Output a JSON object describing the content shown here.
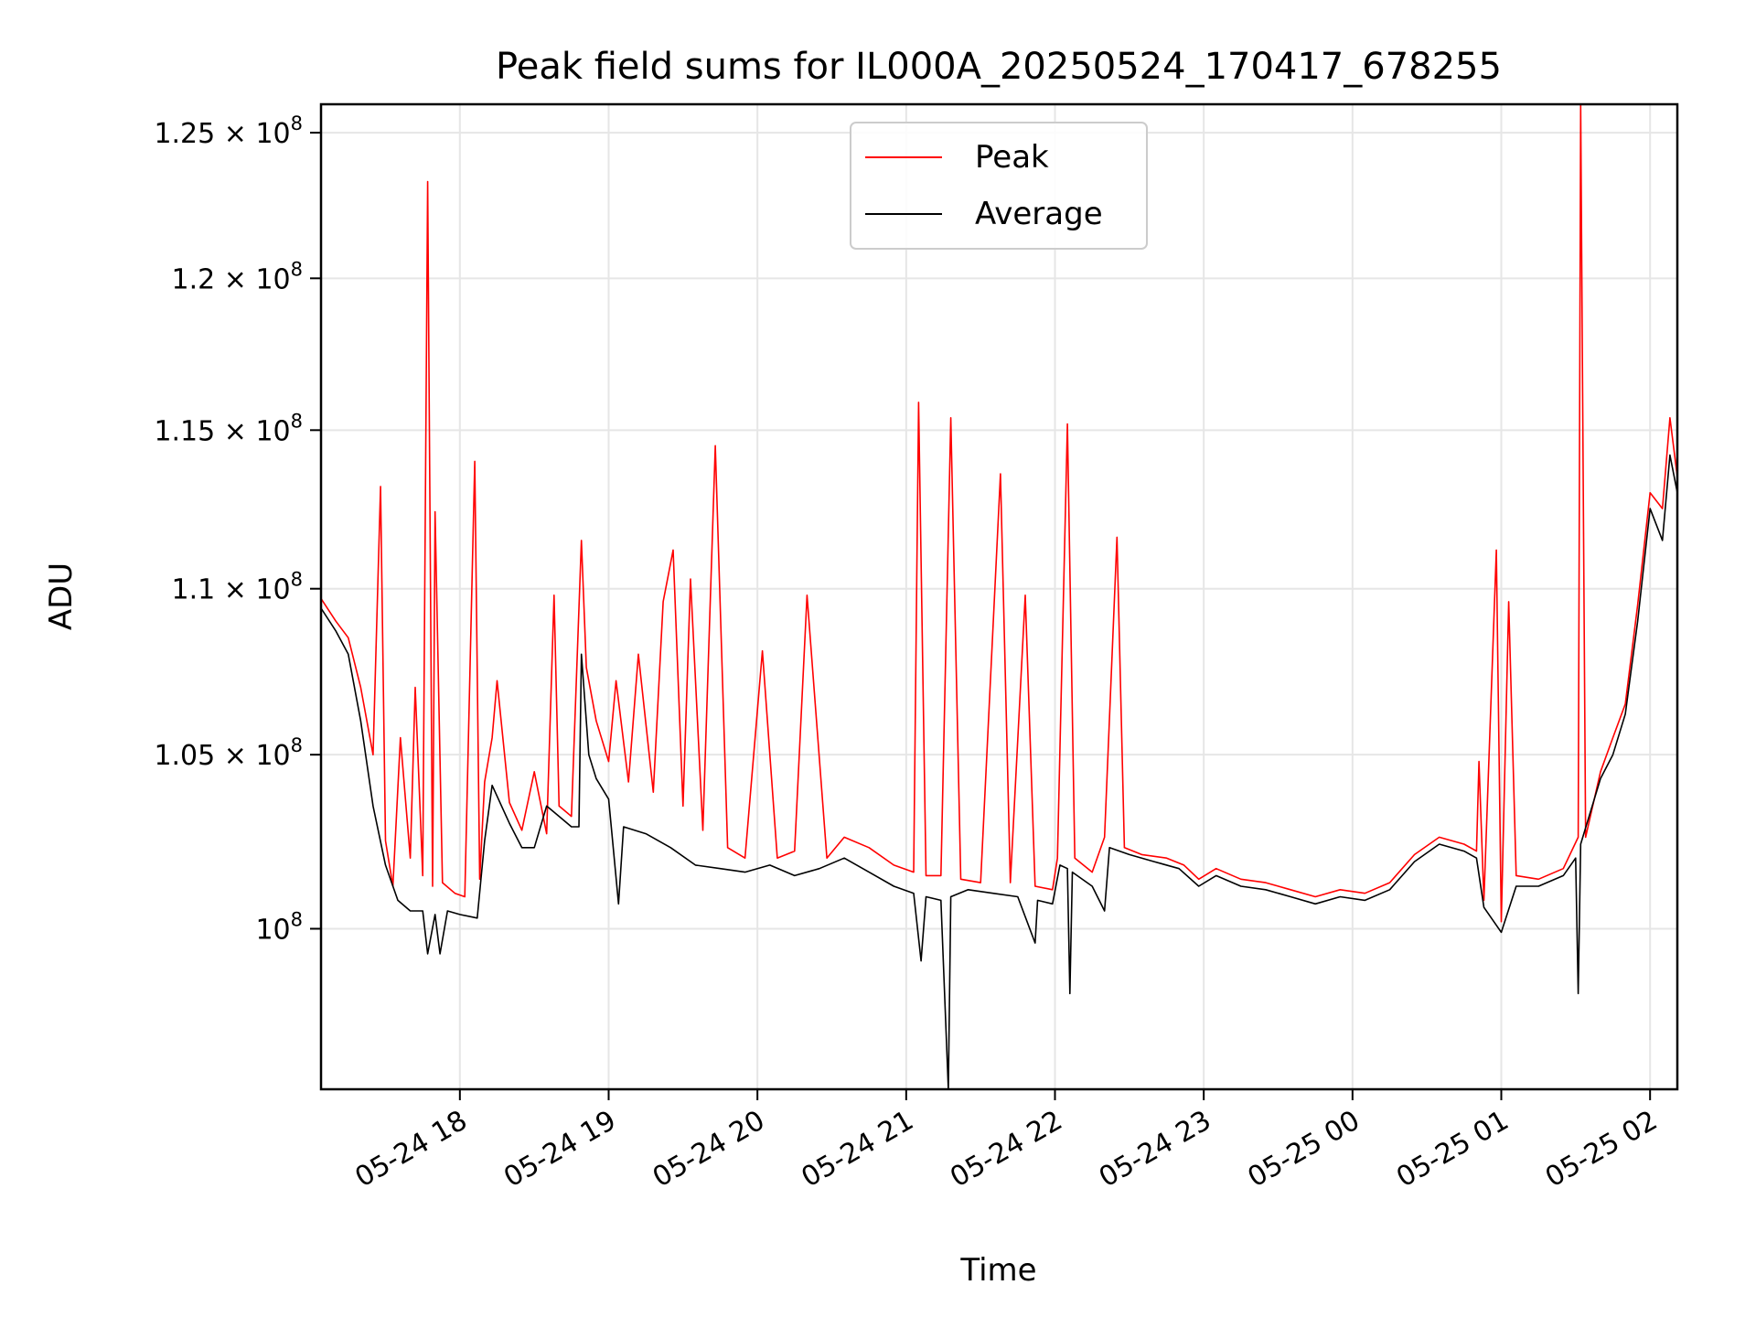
{
  "chart_data": {
    "type": "line",
    "title": "Peak field sums for IL000A_20250524_170417_678255",
    "xlabel": "Time",
    "ylabel": "ADU",
    "yscale": "log",
    "ylim": [
      95600000,
      126000000
    ],
    "xlim": [
      "2025-05-24 17:04",
      "2025-05-25 02:11"
    ],
    "grid": true,
    "legend_position": "upper-center",
    "x_ticks": [
      {
        "t": "2025-05-24 18:00",
        "label": "05-24 18"
      },
      {
        "t": "2025-05-24 19:00",
        "label": "05-24 19"
      },
      {
        "t": "2025-05-24 20:00",
        "label": "05-24 20"
      },
      {
        "t": "2025-05-24 21:00",
        "label": "05-24 21"
      },
      {
        "t": "2025-05-24 22:00",
        "label": "05-24 22"
      },
      {
        "t": "2025-05-24 23:00",
        "label": "05-24 23"
      },
      {
        "t": "2025-05-25 00:00",
        "label": "05-25 00"
      },
      {
        "t": "2025-05-25 01:00",
        "label": "05-25 01"
      },
      {
        "t": "2025-05-25 02:00",
        "label": "05-25 02"
      }
    ],
    "y_ticks": [
      {
        "v": 100000000,
        "mant": "",
        "exp": "8"
      },
      {
        "v": 105000000,
        "mant": "1.05",
        "exp": "8"
      },
      {
        "v": 110000000,
        "mant": "1.1",
        "exp": "8"
      },
      {
        "v": 115000000,
        "mant": "1.15",
        "exp": "8"
      },
      {
        "v": 120000000,
        "mant": "1.2",
        "exp": "8"
      },
      {
        "v": 125000000,
        "mant": "1.25",
        "exp": "8"
      }
    ],
    "series": [
      {
        "name": "Peak",
        "color": "#ff0000",
        "points": [
          [
            "2025-05-24 17:04",
            109700000
          ],
          [
            "2025-05-24 17:10",
            109000000
          ],
          [
            "2025-05-24 17:15",
            108500000
          ],
          [
            "2025-05-24 17:20",
            107000000
          ],
          [
            "2025-05-24 17:25",
            105000000
          ],
          [
            "2025-05-24 17:28",
            113200000
          ],
          [
            "2025-05-24 17:30",
            102500000
          ],
          [
            "2025-05-24 17:33",
            101200000
          ],
          [
            "2025-05-24 17:36",
            105500000
          ],
          [
            "2025-05-24 17:40",
            102000000
          ],
          [
            "2025-05-24 17:42",
            107000000
          ],
          [
            "2025-05-24 17:45",
            101500000
          ],
          [
            "2025-05-24 17:47",
            123300000
          ],
          [
            "2025-05-24 17:49",
            101200000
          ],
          [
            "2025-05-24 17:50",
            112400000
          ],
          [
            "2025-05-24 17:53",
            101300000
          ],
          [
            "2025-05-24 17:58",
            101000000
          ],
          [
            "2025-05-24 18:02",
            100900000
          ],
          [
            "2025-05-24 18:06",
            114000000
          ],
          [
            "2025-05-24 18:08",
            101400000
          ],
          [
            "2025-05-24 18:10",
            104200000
          ],
          [
            "2025-05-24 18:13",
            105500000
          ],
          [
            "2025-05-24 18:15",
            107200000
          ],
          [
            "2025-05-24 18:20",
            103600000
          ],
          [
            "2025-05-24 18:25",
            102800000
          ],
          [
            "2025-05-24 18:30",
            104500000
          ],
          [
            "2025-05-24 18:35",
            102700000
          ],
          [
            "2025-05-24 18:38",
            109800000
          ],
          [
            "2025-05-24 18:40",
            103500000
          ],
          [
            "2025-05-24 18:45",
            103200000
          ],
          [
            "2025-05-24 18:49",
            111500000
          ],
          [
            "2025-05-24 18:51",
            107600000
          ],
          [
            "2025-05-24 18:55",
            106000000
          ],
          [
            "2025-05-24 19:00",
            104800000
          ],
          [
            "2025-05-24 19:03",
            107200000
          ],
          [
            "2025-05-24 19:08",
            104200000
          ],
          [
            "2025-05-24 19:12",
            108000000
          ],
          [
            "2025-05-24 19:18",
            103900000
          ],
          [
            "2025-05-24 19:22",
            109600000
          ],
          [
            "2025-05-24 19:26",
            111200000
          ],
          [
            "2025-05-24 19:30",
            103500000
          ],
          [
            "2025-05-24 19:33",
            110300000
          ],
          [
            "2025-05-24 19:38",
            102800000
          ],
          [
            "2025-05-24 19:43",
            114500000
          ],
          [
            "2025-05-24 19:48",
            102300000
          ],
          [
            "2025-05-24 19:55",
            102000000
          ],
          [
            "2025-05-24 20:02",
            108100000
          ],
          [
            "2025-05-24 20:08",
            102000000
          ],
          [
            "2025-05-24 20:15",
            102200000
          ],
          [
            "2025-05-24 20:20",
            109800000
          ],
          [
            "2025-05-24 20:28",
            102000000
          ],
          [
            "2025-05-24 20:35",
            102600000
          ],
          [
            "2025-05-24 20:45",
            102300000
          ],
          [
            "2025-05-24 20:55",
            101800000
          ],
          [
            "2025-05-24 21:03",
            101600000
          ],
          [
            "2025-05-24 21:05",
            115900000
          ],
          [
            "2025-05-24 21:08",
            101500000
          ],
          [
            "2025-05-24 21:14",
            101500000
          ],
          [
            "2025-05-24 21:18",
            115400000
          ],
          [
            "2025-05-24 21:22",
            101400000
          ],
          [
            "2025-05-24 21:30",
            101300000
          ],
          [
            "2025-05-24 21:38",
            113600000
          ],
          [
            "2025-05-24 21:42",
            101300000
          ],
          [
            "2025-05-24 21:48",
            109800000
          ],
          [
            "2025-05-24 21:52",
            101200000
          ],
          [
            "2025-05-24 21:59",
            101100000
          ],
          [
            "2025-05-24 22:01",
            102000000
          ],
          [
            "2025-05-24 22:05",
            115200000
          ],
          [
            "2025-05-24 22:08",
            102000000
          ],
          [
            "2025-05-24 22:15",
            101600000
          ],
          [
            "2025-05-24 22:20",
            102600000
          ],
          [
            "2025-05-24 22:25",
            111600000
          ],
          [
            "2025-05-24 22:28",
            102300000
          ],
          [
            "2025-05-24 22:35",
            102100000
          ],
          [
            "2025-05-24 22:45",
            102000000
          ],
          [
            "2025-05-24 22:52",
            101800000
          ],
          [
            "2025-05-24 22:58",
            101400000
          ],
          [
            "2025-05-24 23:05",
            101700000
          ],
          [
            "2025-05-24 23:15",
            101400000
          ],
          [
            "2025-05-24 23:25",
            101300000
          ],
          [
            "2025-05-24 23:35",
            101100000
          ],
          [
            "2025-05-24 23:45",
            100900000
          ],
          [
            "2025-05-24 23:55",
            101100000
          ],
          [
            "2025-05-25 00:05",
            101000000
          ],
          [
            "2025-05-25 00:15",
            101300000
          ],
          [
            "2025-05-25 00:25",
            102100000
          ],
          [
            "2025-05-25 00:35",
            102600000
          ],
          [
            "2025-05-25 00:45",
            102400000
          ],
          [
            "2025-05-25 00:50",
            102200000
          ],
          [
            "2025-05-25 00:51",
            104800000
          ],
          [
            "2025-05-25 00:53",
            100800000
          ],
          [
            "2025-05-25 00:58",
            111200000
          ],
          [
            "2025-05-25 01:00",
            100200000
          ],
          [
            "2025-05-25 01:03",
            109600000
          ],
          [
            "2025-05-25 01:06",
            101500000
          ],
          [
            "2025-05-25 01:15",
            101400000
          ],
          [
            "2025-05-25 01:25",
            101700000
          ],
          [
            "2025-05-25 01:31",
            102600000
          ],
          [
            "2025-05-25 01:32",
            126000000
          ],
          [
            "2025-05-25 01:34",
            102600000
          ],
          [
            "2025-05-25 01:40",
            104500000
          ],
          [
            "2025-05-25 01:45",
            105500000
          ],
          [
            "2025-05-25 01:50",
            106500000
          ],
          [
            "2025-05-25 01:55",
            109500000
          ],
          [
            "2025-05-25 02:00",
            113000000
          ],
          [
            "2025-05-25 02:05",
            112500000
          ],
          [
            "2025-05-25 02:08",
            115400000
          ],
          [
            "2025-05-25 02:11",
            113500000
          ]
        ]
      },
      {
        "name": "Average",
        "color": "#000000",
        "points": [
          [
            "2025-05-24 17:04",
            109400000
          ],
          [
            "2025-05-24 17:10",
            108700000
          ],
          [
            "2025-05-24 17:15",
            108000000
          ],
          [
            "2025-05-24 17:20",
            106000000
          ],
          [
            "2025-05-24 17:25",
            103500000
          ],
          [
            "2025-05-24 17:30",
            101800000
          ],
          [
            "2025-05-24 17:35",
            100800000
          ],
          [
            "2025-05-24 17:40",
            100500000
          ],
          [
            "2025-05-24 17:45",
            100500000
          ],
          [
            "2025-05-24 17:47",
            99300000
          ],
          [
            "2025-05-24 17:50",
            100400000
          ],
          [
            "2025-05-24 17:52",
            99300000
          ],
          [
            "2025-05-24 17:55",
            100500000
          ],
          [
            "2025-05-24 18:00",
            100400000
          ],
          [
            "2025-05-24 18:07",
            100300000
          ],
          [
            "2025-05-24 18:10",
            102500000
          ],
          [
            "2025-05-24 18:13",
            104100000
          ],
          [
            "2025-05-24 18:20",
            103000000
          ],
          [
            "2025-05-24 18:25",
            102300000
          ],
          [
            "2025-05-24 18:30",
            102300000
          ],
          [
            "2025-05-24 18:35",
            103500000
          ],
          [
            "2025-05-24 18:40",
            103200000
          ],
          [
            "2025-05-24 18:45",
            102900000
          ],
          [
            "2025-05-24 18:48",
            102900000
          ],
          [
            "2025-05-24 18:49",
            108000000
          ],
          [
            "2025-05-24 18:52",
            105000000
          ],
          [
            "2025-05-24 18:55",
            104300000
          ],
          [
            "2025-05-24 19:00",
            103700000
          ],
          [
            "2025-05-24 19:04",
            100700000
          ],
          [
            "2025-05-24 19:06",
            102900000
          ],
          [
            "2025-05-24 19:15",
            102700000
          ],
          [
            "2025-05-24 19:25",
            102300000
          ],
          [
            "2025-05-24 19:35",
            101800000
          ],
          [
            "2025-05-24 19:45",
            101700000
          ],
          [
            "2025-05-24 19:55",
            101600000
          ],
          [
            "2025-05-24 20:05",
            101800000
          ],
          [
            "2025-05-24 20:15",
            101500000
          ],
          [
            "2025-05-24 20:25",
            101700000
          ],
          [
            "2025-05-24 20:35",
            102000000
          ],
          [
            "2025-05-24 20:45",
            101600000
          ],
          [
            "2025-05-24 20:55",
            101200000
          ],
          [
            "2025-05-24 21:03",
            101000000
          ],
          [
            "2025-05-24 21:06",
            99100000
          ],
          [
            "2025-05-24 21:08",
            100900000
          ],
          [
            "2025-05-24 21:14",
            100800000
          ],
          [
            "2025-05-24 21:17",
            95600000
          ],
          [
            "2025-05-24 21:18",
            100900000
          ],
          [
            "2025-05-24 21:25",
            101100000
          ],
          [
            "2025-05-24 21:35",
            101000000
          ],
          [
            "2025-05-24 21:45",
            100900000
          ],
          [
            "2025-05-24 21:52",
            99600000
          ],
          [
            "2025-05-24 21:53",
            100800000
          ],
          [
            "2025-05-24 21:59",
            100700000
          ],
          [
            "2025-05-24 22:02",
            101800000
          ],
          [
            "2025-05-24 22:05",
            101700000
          ],
          [
            "2025-05-24 22:06",
            98200000
          ],
          [
            "2025-05-24 22:07",
            101600000
          ],
          [
            "2025-05-24 22:15",
            101200000
          ],
          [
            "2025-05-24 22:20",
            100500000
          ],
          [
            "2025-05-24 22:22",
            102300000
          ],
          [
            "2025-05-24 22:30",
            102100000
          ],
          [
            "2025-05-24 22:40",
            101900000
          ],
          [
            "2025-05-24 22:50",
            101700000
          ],
          [
            "2025-05-24 22:58",
            101200000
          ],
          [
            "2025-05-24 23:05",
            101500000
          ],
          [
            "2025-05-24 23:15",
            101200000
          ],
          [
            "2025-05-24 23:25",
            101100000
          ],
          [
            "2025-05-24 23:35",
            100900000
          ],
          [
            "2025-05-24 23:45",
            100700000
          ],
          [
            "2025-05-24 23:55",
            100900000
          ],
          [
            "2025-05-25 00:05",
            100800000
          ],
          [
            "2025-05-25 00:15",
            101100000
          ],
          [
            "2025-05-25 00:25",
            101900000
          ],
          [
            "2025-05-25 00:35",
            102400000
          ],
          [
            "2025-05-25 00:45",
            102200000
          ],
          [
            "2025-05-25 00:50",
            102000000
          ],
          [
            "2025-05-25 00:53",
            100600000
          ],
          [
            "2025-05-25 01:00",
            99900000
          ],
          [
            "2025-05-25 01:06",
            101200000
          ],
          [
            "2025-05-25 01:15",
            101200000
          ],
          [
            "2025-05-25 01:25",
            101500000
          ],
          [
            "2025-05-25 01:30",
            102000000
          ],
          [
            "2025-05-25 01:31",
            98200000
          ],
          [
            "2025-05-25 01:32",
            102400000
          ],
          [
            "2025-05-25 01:40",
            104300000
          ],
          [
            "2025-05-25 01:45",
            105000000
          ],
          [
            "2025-05-25 01:50",
            106200000
          ],
          [
            "2025-05-25 01:55",
            109000000
          ],
          [
            "2025-05-25 02:00",
            112500000
          ],
          [
            "2025-05-25 02:05",
            111500000
          ],
          [
            "2025-05-25 02:08",
            114200000
          ],
          [
            "2025-05-25 02:11",
            113000000
          ]
        ]
      }
    ]
  }
}
